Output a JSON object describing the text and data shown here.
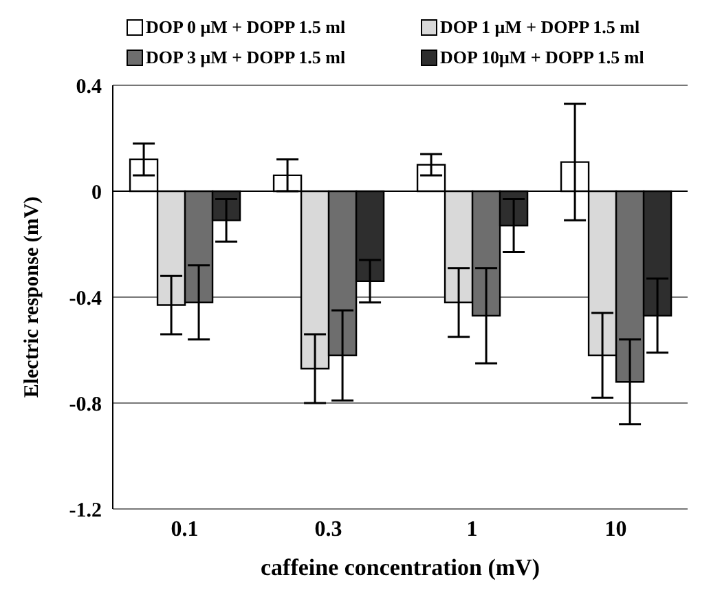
{
  "chart_data": {
    "type": "bar",
    "xlabel": "caffeine concentration (mV)",
    "ylabel": "Electric response (mV)",
    "categories": [
      "0.1",
      "0.3",
      "1",
      "10"
    ],
    "series": [
      {
        "name": "DOP 0 μM + DOPP 1.5 ml",
        "color": "#ffffff",
        "values": [
          0.12,
          0.06,
          0.1,
          0.11
        ],
        "errors": [
          0.06,
          0.06,
          0.04,
          0.22
        ]
      },
      {
        "name": "DOP 1 μM + DOPP 1.5 ml",
        "color": "#d9d9d9",
        "values": [
          -0.43,
          -0.67,
          -0.42,
          -0.62
        ],
        "errors": [
          0.11,
          0.13,
          0.13,
          0.16
        ]
      },
      {
        "name": "DOP 3 μM + DOPP 1.5 ml",
        "color": "#6e6e6e",
        "values": [
          -0.42,
          -0.62,
          -0.47,
          -0.72
        ],
        "errors": [
          0.14,
          0.17,
          0.18,
          0.16
        ]
      },
      {
        "name": "DOP 10μM + DOPP 1.5 ml",
        "color": "#2e2e2e",
        "values": [
          -0.11,
          -0.34,
          -0.13,
          -0.47
        ],
        "errors": [
          0.08,
          0.08,
          0.1,
          0.14
        ]
      }
    ],
    "ylim": [
      -1.2,
      0.4
    ],
    "yticks": [
      0.4,
      0,
      -0.4,
      -0.8,
      -1.2
    ],
    "grid": "y",
    "legend": "top"
  }
}
